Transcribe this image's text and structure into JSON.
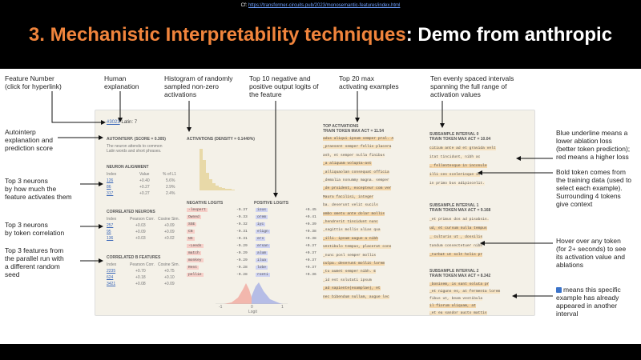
{
  "title": {
    "accent": "3. Mechanistic Interpretability techniques",
    "rest": ": Demo from anthropic"
  },
  "annotations": {
    "feature_number": [
      "Feature Number",
      "(click for hyperlink)"
    ],
    "human_explanation": [
      "Human",
      "explanation"
    ],
    "histogram": [
      "Histogram of randomly",
      "sampled non-zero",
      "activations"
    ],
    "top10": [
      "Top 10 negative and",
      "positive output logits of",
      "the feature"
    ],
    "top20": [
      "Top 20 max",
      "activating examples"
    ],
    "ten_intervals": [
      "Ten evenly spaced intervals",
      "spanning the full range of",
      "activation values"
    ],
    "autointerp": [
      "Autointerp",
      "explanation and",
      "prediction score"
    ],
    "top3_neurons": [
      "Top 3 neurons",
      "by how much the",
      "feature activates them"
    ],
    "top3_corr": [
      "Top 3 neurons",
      "by token correlation"
    ],
    "top3_features": [
      "Top 3 features from",
      "the parallel run with",
      "a different random",
      "seed"
    ],
    "blue_underline": [
      "Blue underline means a",
      "lower ablation loss",
      "(better token prediction);",
      "red means a higher loss"
    ],
    "bold_token": [
      "Bold token comes from",
      "the training data (used to",
      "select each example).",
      "Surrounding 4 tokens",
      "give context"
    ],
    "hover": [
      "Hover over any token",
      "(for 2+ seconds) to see",
      "its activation value and",
      "ablations"
    ],
    "already": [
      "means this specific",
      "example has already",
      "appeared in another",
      "interval"
    ]
  },
  "icons": {
    "interval_badge": "interval-badge-icon"
  },
  "screenshot": {
    "feature_link": "#3023",
    "feature_name": "Latin: 7",
    "autointerp_header": "AUTOINTERP. (SCORE = 0.305)",
    "autointerp_text": [
      "The neuron attends to common",
      "Latin words and short phrases."
    ],
    "neuron_alignment": "NEURON ALIGNMENT",
    "na_cols": [
      "Index",
      "Value",
      "% of L1"
    ],
    "na_rows": [
      [
        "126",
        "+0.40",
        "5.6%"
      ],
      [
        "86",
        "+0.27",
        "2.9%"
      ],
      [
        "317",
        "+0.27",
        "2.4%"
      ]
    ],
    "correlated_neurons": "CORRELATED NEURONS",
    "cn_cols": [
      "Index",
      "Pearson Corr.",
      "Cosine Sim."
    ],
    "cn_rows": [
      [
        "257",
        "+0.03",
        "+0.09"
      ],
      [
        "95",
        "+0.09",
        "+0.09"
      ],
      [
        "136",
        "+0.03",
        "+0.02"
      ]
    ],
    "correlated_b": "CORRELATED B FEATURES",
    "cb_cols": [
      "Index",
      "Pearson Corr.",
      "Cosine Sim."
    ],
    "cb_rows": [
      [
        "2235",
        "+0.70",
        "+0.75"
      ],
      [
        "624",
        "+0.18",
        "+0.10"
      ],
      [
        "3421",
        "+0.08",
        "+0.09"
      ]
    ],
    "activations_header": "ACTIVATIONS (DENSITY = 0.1440%)",
    "neg_logits_header": "NEGATIVE LOGITS",
    "pos_logits_header": "POSITIVE LOGITS",
    "neg_logits": [
      [
        "-lexpert",
        "-0.37"
      ],
      [
        "Owned",
        "-0.33"
      ],
      [
        "SSE",
        "-0.32"
      ],
      [
        "CN",
        "-0.31"
      ],
      [
        "NS",
        "-0.31"
      ],
      [
        "-Leeds",
        "-0.29"
      ],
      [
        "match",
        "-0.29"
      ],
      [
        "monkey",
        "-0.29"
      ],
      [
        "Rent",
        "-0.28"
      ],
      [
        "pellie",
        "-0.28"
      ]
    ],
    "pos_logits": [
      [
        "ious",
        "+0.45"
      ],
      [
        "orem",
        "+0.41"
      ],
      [
        "iyc",
        "+0.39"
      ],
      [
        "elign",
        "+0.38"
      ],
      [
        "ers",
        "+0.38"
      ],
      [
        "ersan",
        "+0.37"
      ],
      [
        "alum",
        "+0.37"
      ],
      [
        "ilua",
        "+0.37"
      ],
      [
        "lobe",
        "+0.37"
      ],
      [
        "roeti",
        "+0.36"
      ]
    ],
    "hist_axis": [
      "-1",
      "0",
      "1"
    ],
    "hist_xlabel": "Logit",
    "top_activations_header": "TOP ACTIVATIONS",
    "top_activations_sub": "TRAIN TOKEN MAX ACT = 11.54",
    "top_examples": [
      "adus aliqui ipsum semper pral. A",
      "_praesent semper fellis placera",
      "ash, et semper nulla finibus",
      "_a aliquam volupta-ast",
      "_alliquaolan consequat officia",
      "_demalia nonummy magna. semper",
      "_de proident, excepteur com ver",
      "Maura facilisi, integer",
      "ba. deserunt velit sucils",
      "ambo ometu ante dolar mollis",
      "_hendrerit tincidunt nunc",
      "_sagittis mollis alias qua",
      "_illi. ipsum augue a nibh",
      "vestibulo tempus, placerat cons",
      "_nunc posl semper mollis",
      "culpa. deserunt mollit lorem",
      "_tu aumet semper nibh. E",
      "_id est solutati ipsum",
      "_ad sapiente(examplae), et",
      "nec bibendum nullam, augue lec"
    ],
    "sub0_header": "SUBSAMPLE INTERVAL 0",
    "sub0_sub": "TRAIN TOKEN MAX ACT = 10.04",
    "sub0_examples": [
      "citium ante ad et gravida velt",
      "itat tincidunt, nibh ac",
      "_ fellentesque in inconule",
      "illi ces scelerisque in",
      "in primo bus adipiscelit."
    ],
    "sub1_header": "SUBSAMPLE INTERVAL 1",
    "sub1_sub": "TRAIN TOKEN MAX ACT = 9.168",
    "sub1_examples": [
      "_et primus dos ad pisabsis.",
      "ud, et cursum nulla tempus",
      "_ culturis ut , dossilis",
      "tandum consectetuer nibh",
      "_turbat ut solt holis pr"
    ],
    "sub2_header": "SUBSAMPLE INTERVAL 2",
    "sub2_sub": "TRAIN TOKEN MAX ACT = 8.342",
    "sub2_examples": [
      "_bonisem, is sant soluta pr",
      "_et niguns es, at fermenta lorem",
      "fibus ut, beam vestibula",
      "il fiorum aliquam, at",
      "_et ea sandor aucto mattis"
    ]
  },
  "footer": {
    "prefix": "Cf:",
    "link": "https://transformer-circuits.pub/2023/monosemantic-features/index.html"
  }
}
